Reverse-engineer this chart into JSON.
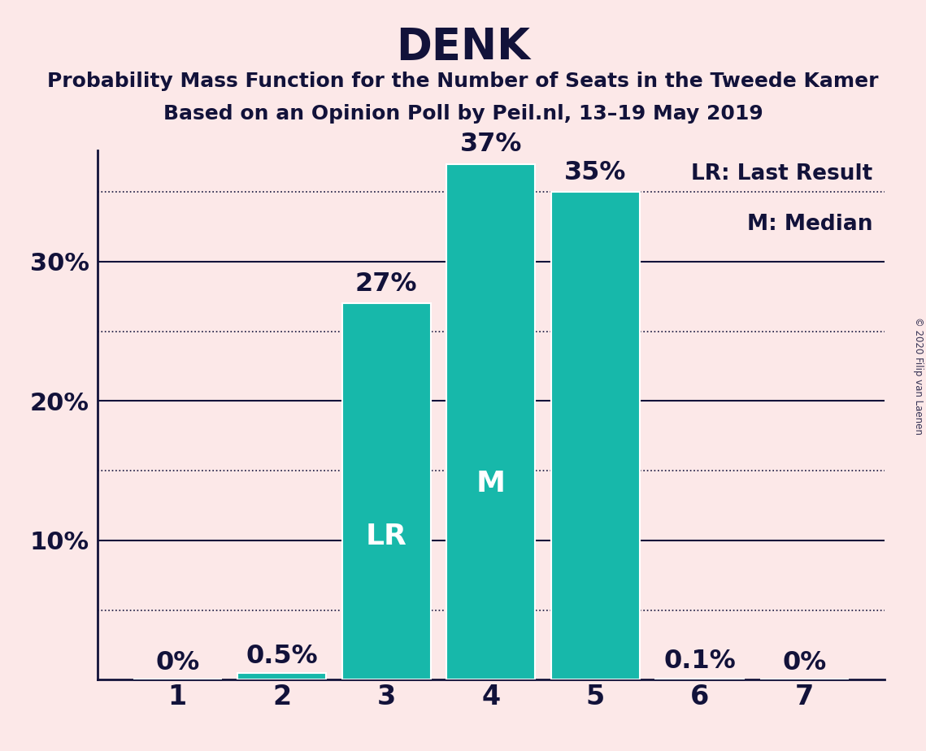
{
  "title": "DENK",
  "subtitle1": "Probability Mass Function for the Number of Seats in the Tweede Kamer",
  "subtitle2": "Based on an Opinion Poll by Peil.nl, 13–19 May 2019",
  "categories": [
    1,
    2,
    3,
    4,
    5,
    6,
    7
  ],
  "values": [
    0.0,
    0.5,
    27.0,
    37.0,
    35.0,
    0.1,
    0.0
  ],
  "bar_color": "#17b8aa",
  "bar_edge_color": "#ffffff",
  "background_color": "#fce8e8",
  "text_color": "#12123a",
  "label_texts": [
    "0%",
    "0.5%",
    "27%",
    "37%",
    "35%",
    "0.1%",
    "0%"
  ],
  "bar_labels": [
    "",
    "",
    "LR",
    "M",
    "",
    "",
    ""
  ],
  "bar_label_color": "#ffffff",
  "ylim": [
    0,
    38
  ],
  "solid_yticks": [
    10,
    20,
    30
  ],
  "dotted_yticks": [
    5,
    15,
    25,
    35
  ],
  "ytick_labels_solid": [
    "10%",
    "20%",
    "30%"
  ],
  "legend_text1": "LR: Last Result",
  "legend_text2": "M: Median",
  "watermark": "© 2020 Filip van Laenen",
  "title_fontsize": 38,
  "subtitle_fontsize": 18,
  "bar_annotation_fontsize": 23,
  "bar_inner_label_fontsize": 26,
  "ytick_fontsize": 22,
  "xtick_fontsize": 24,
  "legend_fontsize": 19
}
